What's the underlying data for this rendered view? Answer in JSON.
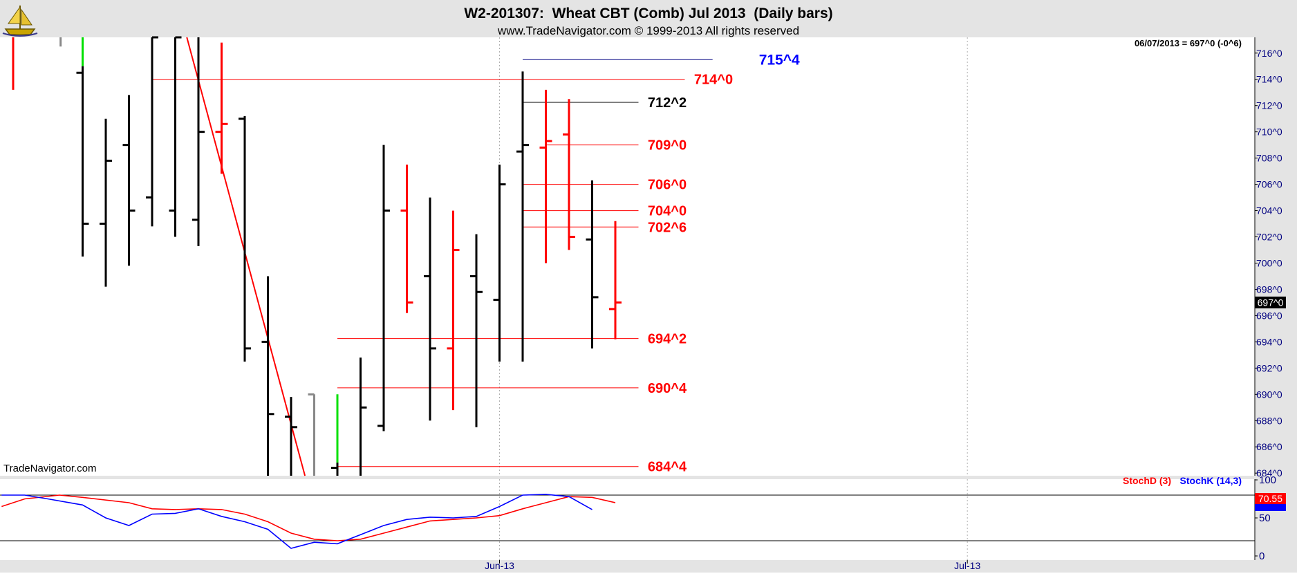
{
  "header": {
    "title": "W2-201307:  Wheat CBT (Comb) Jul 2013  (Daily bars)",
    "subtitle": "www.TradeNavigator.com © 1999-2013 All rights reserved",
    "logo_icon": "sailing-ship-icon"
  },
  "price_panel": {
    "info_readout": "06/07/2013 = 697^0 (-0^6)",
    "last_price_tag": "697^0",
    "watermark": "TradeNavigator.com",
    "grid": "x-dotted",
    "colors": {
      "up": "#000000",
      "down": "#ff0000",
      "green": "#00e000",
      "gray": "#888888",
      "level": "#ff0000",
      "target": "#0000ff",
      "background": "#ffffff",
      "frame": "#e4e4e4"
    }
  },
  "stoch_panel": {
    "legend": [
      {
        "label": "StochD (3)",
        "color": "#ff0000"
      },
      {
        "label": "StochK (14,3)",
        "color": "#0000ff"
      }
    ],
    "value_tags": [
      {
        "label": "70.55",
        "color": "#ff0000"
      }
    ],
    "ticks": [
      "100",
      "50",
      "0"
    ],
    "reference_lines": [
      80,
      20
    ]
  },
  "x_axis": {
    "tick_labels": [
      "Jun-13",
      "Jul-13"
    ]
  },
  "chart_data": [
    {
      "type": "bar",
      "subtype": "ohlc-daily",
      "title": "W2-201307:  Wheat CBT (Comb) Jul 2013  (Daily bars)",
      "ylim": [
        683.8,
        717.2
      ],
      "y_ticks": [
        {
          "v": 716,
          "label": "716^0"
        },
        {
          "v": 714,
          "label": "714^0"
        },
        {
          "v": 712,
          "label": "712^0"
        },
        {
          "v": 710,
          "label": "710^0"
        },
        {
          "v": 708,
          "label": "708^0"
        },
        {
          "v": 706,
          "label": "706^0"
        },
        {
          "v": 704,
          "label": "704^0"
        },
        {
          "v": 702,
          "label": "702^0"
        },
        {
          "v": 700,
          "label": "700^0"
        },
        {
          "v": 698,
          "label": "698^0"
        },
        {
          "v": 696,
          "label": "696^0"
        },
        {
          "v": 694,
          "label": "694^0"
        },
        {
          "v": 692,
          "label": "692^0"
        },
        {
          "v": 690,
          "label": "690^0"
        },
        {
          "v": 688,
          "label": "688^0"
        },
        {
          "v": 686,
          "label": "686^0"
        },
        {
          "v": 684,
          "label": "684^0"
        }
      ],
      "x_ticks": [
        {
          "i": 21,
          "label": "Jun-13"
        },
        {
          "i": 41.2,
          "label": "Jul-13"
        }
      ],
      "bars": [
        {
          "i": 0,
          "h": 720,
          "l": 713.2,
          "o": null,
          "c": null,
          "color": "red"
        },
        {
          "i": 2.05,
          "h": 720,
          "l": 716.5,
          "o": null,
          "c": null,
          "color": "gray"
        },
        {
          "i": 3,
          "h": 720,
          "l": 715,
          "o": null,
          "c": null,
          "color": "green"
        },
        {
          "i": 3,
          "h": 715,
          "l": 700.5,
          "o": 714.5,
          "c": 703,
          "color": "black"
        },
        {
          "i": 4,
          "h": 711,
          "l": 698.2,
          "o": 703,
          "c": 707.8,
          "color": "black"
        },
        {
          "i": 5,
          "h": 712.8,
          "l": 699.8,
          "o": 709,
          "c": 704,
          "color": "black"
        },
        {
          "i": 6,
          "h": 720,
          "l": 702.8,
          "o": 705,
          "c": 718,
          "color": "black"
        },
        {
          "i": 7,
          "h": 720,
          "l": 702,
          "o": 704,
          "c": 718,
          "color": "black"
        },
        {
          "i": 8,
          "h": 720,
          "l": 701.3,
          "o": 703.3,
          "c": 710,
          "color": "black"
        },
        {
          "i": 9,
          "h": 716.8,
          "l": 706.8,
          "o": 710,
          "c": 710.6,
          "color": "red"
        },
        {
          "i": 10,
          "h": 711.2,
          "l": 692.5,
          "o": 711,
          "c": 693.5,
          "color": "black"
        },
        {
          "i": 11,
          "h": 699,
          "l": 683,
          "o": 694,
          "c": 688.5,
          "color": "black"
        },
        {
          "i": 12,
          "h": 689.8,
          "l": 683,
          "o": 688.3,
          "c": 687.5,
          "color": "black"
        },
        {
          "i": 13,
          "h": 690,
          "l": 683,
          "o": 690,
          "c": null,
          "color": "gray"
        },
        {
          "i": 14,
          "h": 690,
          "l": 684.8,
          "o": null,
          "c": null,
          "color": "green"
        },
        {
          "i": 14,
          "h": 684.8,
          "l": 683,
          "o": 684.4,
          "c": null,
          "color": "black"
        },
        {
          "i": 15,
          "h": 692.8,
          "l": 683,
          "o": null,
          "c": 689,
          "color": "black"
        },
        {
          "i": 16,
          "h": 709,
          "l": 687.2,
          "o": 687.6,
          "c": 704,
          "color": "black"
        },
        {
          "i": 17,
          "h": 707.5,
          "l": 696.2,
          "o": 704,
          "c": 697,
          "color": "red"
        },
        {
          "i": 18,
          "h": 705,
          "l": 688,
          "o": 699,
          "c": 693.5,
          "color": "black"
        },
        {
          "i": 19,
          "h": 704,
          "l": 688.8,
          "o": 693.5,
          "c": 701,
          "color": "red"
        },
        {
          "i": 20,
          "h": 702.2,
          "l": 687.5,
          "o": 699,
          "c": 697.8,
          "color": "black"
        },
        {
          "i": 21,
          "h": 707.5,
          "l": 692.5,
          "o": 697.2,
          "c": 706,
          "color": "black"
        },
        {
          "i": 22,
          "h": 714.6,
          "l": 692.5,
          "o": 708.5,
          "c": 709,
          "color": "black"
        },
        {
          "i": 23,
          "h": 713.2,
          "l": 700,
          "o": 708.8,
          "c": 709.3,
          "color": "red"
        },
        {
          "i": 24,
          "h": 712.5,
          "l": 701,
          "o": 709.8,
          "c": 702,
          "color": "red"
        },
        {
          "i": 25,
          "h": 706.3,
          "l": 693.5,
          "o": 701.8,
          "c": 697.4,
          "color": "black"
        },
        {
          "i": 26,
          "h": 703.2,
          "l": 694.2,
          "o": 696.5,
          "c": 697,
          "color": "red"
        }
      ],
      "trendline": {
        "from": {
          "i": 7.5,
          "v": 720
        },
        "to": {
          "i": 12.6,
          "v": 683.8
        },
        "color": "red"
      },
      "levels": [
        {
          "label": "715^4",
          "v": 715.5,
          "from": 22,
          "to": 30.2,
          "line_color": "#000080",
          "label_color": "#0000ff",
          "label_i": 32.2,
          "bold": true
        },
        {
          "label": "714^0",
          "v": 714,
          "from": 6,
          "to": 29,
          "line_color": "#ff0000",
          "label_color": "#ff0000",
          "label_i": 29.4
        },
        {
          "label": "712^2",
          "v": 712.25,
          "from": 22,
          "to": 27,
          "line_color": "#000000",
          "label_color": "#000000",
          "label_i": 27.4
        },
        {
          "label": "709^0",
          "v": 709,
          "from": 23,
          "to": 27,
          "line_color": "#ff0000",
          "label_color": "#ff0000",
          "label_i": 27.4
        },
        {
          "label": "706^0",
          "v": 706,
          "from": 22,
          "to": 27,
          "line_color": "#ff0000",
          "label_color": "#ff0000",
          "label_i": 27.4
        },
        {
          "label": "704^0",
          "v": 704,
          "from": 22,
          "to": 27,
          "line_color": "#ff0000",
          "label_color": "#ff0000",
          "label_i": 27.4
        },
        {
          "label": "702^6",
          "v": 702.75,
          "from": 22,
          "to": 27,
          "line_color": "#ff0000",
          "label_color": "#ff0000",
          "label_i": 27.4
        },
        {
          "label": "694^2",
          "v": 694.25,
          "from": 14,
          "to": 27,
          "line_color": "#ff0000",
          "label_color": "#ff0000",
          "label_i": 27.4
        },
        {
          "label": "690^4",
          "v": 690.5,
          "from": 14,
          "to": 27,
          "line_color": "#ff0000",
          "label_color": "#ff0000",
          "label_i": 27.4
        },
        {
          "label": "684^4",
          "v": 684.5,
          "from": 14,
          "to": 27,
          "line_color": "#ff0000",
          "label_color": "#ff0000",
          "label_i": 27.4
        }
      ]
    },
    {
      "type": "line",
      "ylim": [
        0,
        100
      ],
      "series": [
        {
          "name": "StochD (3)",
          "color": "#ff0000",
          "points": [
            [
              -0.5,
              65
            ],
            [
              0.5,
              75
            ],
            [
              2,
              80
            ],
            [
              3,
              77
            ],
            [
              5,
              70
            ],
            [
              6,
              62
            ],
            [
              7,
              61
            ],
            [
              8,
              62
            ],
            [
              9,
              61
            ],
            [
              10,
              55
            ],
            [
              11,
              45
            ],
            [
              12,
              30
            ],
            [
              13,
              22
            ],
            [
              14,
              20
            ],
            [
              15,
              22
            ],
            [
              16,
              30
            ],
            [
              17,
              38
            ],
            [
              18,
              46
            ],
            [
              19,
              48
            ],
            [
              20,
              50
            ],
            [
              21,
              53
            ],
            [
              22,
              62
            ],
            [
              23,
              70
            ],
            [
              24,
              78
            ],
            [
              25,
              77
            ],
            [
              26,
              70
            ]
          ]
        },
        {
          "name": "StochK (14,3)",
          "color": "#0000ff",
          "points": [
            [
              -0.5,
              80
            ],
            [
              0.5,
              80
            ],
            [
              1.5,
              75
            ],
            [
              3,
              67
            ],
            [
              4,
              50
            ],
            [
              5,
              40
            ],
            [
              6,
              55
            ],
            [
              7,
              56
            ],
            [
              8,
              62
            ],
            [
              9,
              52
            ],
            [
              10,
              45
            ],
            [
              11,
              35
            ],
            [
              12,
              10
            ],
            [
              13,
              18
            ],
            [
              14,
              16
            ],
            [
              15,
              28
            ],
            [
              16,
              40
            ],
            [
              17,
              48
            ],
            [
              18,
              51
            ],
            [
              19,
              50
            ],
            [
              20,
              52
            ],
            [
              21,
              65
            ],
            [
              22,
              80
            ],
            [
              23,
              81
            ],
            [
              24,
              78
            ],
            [
              25,
              61
            ]
          ]
        }
      ]
    }
  ]
}
